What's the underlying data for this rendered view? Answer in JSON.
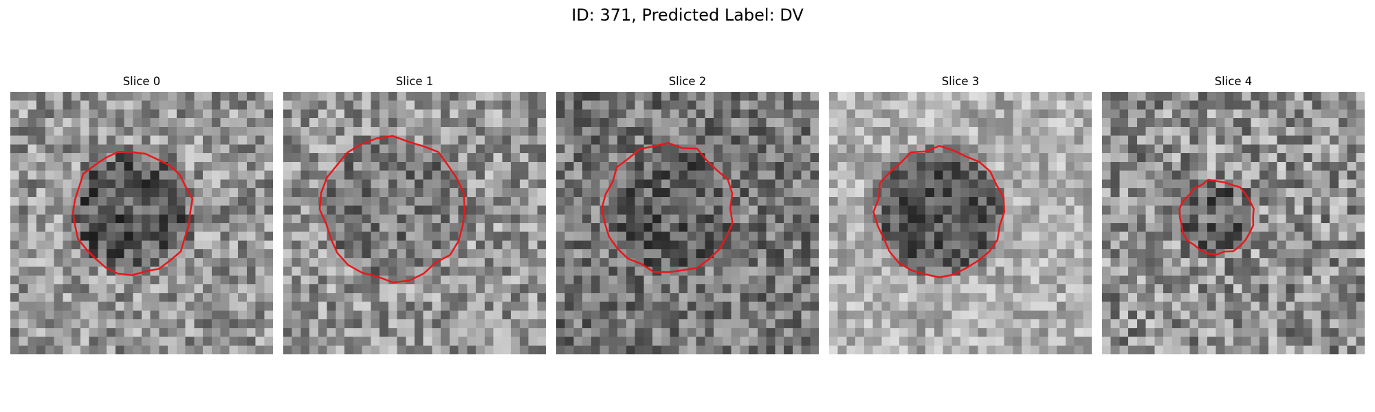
{
  "figure": {
    "title": "ID: 371, Predicted Label: DV",
    "contour_color": "#e8181b"
  },
  "slices": [
    {
      "title": "Slice 0",
      "seed": 11,
      "base": 150,
      "dark_level": 88,
      "noise": 62,
      "roi": {
        "cx": 13.9,
        "cy": 13.8,
        "r": 6.9
      }
    },
    {
      "title": "Slice 1",
      "seed": 23,
      "base": 150,
      "dark_level": 125,
      "noise": 62,
      "roi": {
        "cx": 12.5,
        "cy": 13.4,
        "r": 8.1
      }
    },
    {
      "title": "Slice 2",
      "seed": 37,
      "base": 120,
      "dark_level": 95,
      "noise": 60,
      "roi": {
        "cx": 12.8,
        "cy": 13.3,
        "r": 7.3
      }
    },
    {
      "title": "Slice 3",
      "seed": 41,
      "base": 175,
      "dark_level": 85,
      "noise": 48,
      "roi": {
        "cx": 12.6,
        "cy": 13.7,
        "r": 7.3
      }
    },
    {
      "title": "Slice 4",
      "seed": 53,
      "base": 145,
      "dark_level": 105,
      "noise": 70,
      "roi": {
        "cx": 13.1,
        "cy": 14.3,
        "r": 4.2
      }
    }
  ]
}
